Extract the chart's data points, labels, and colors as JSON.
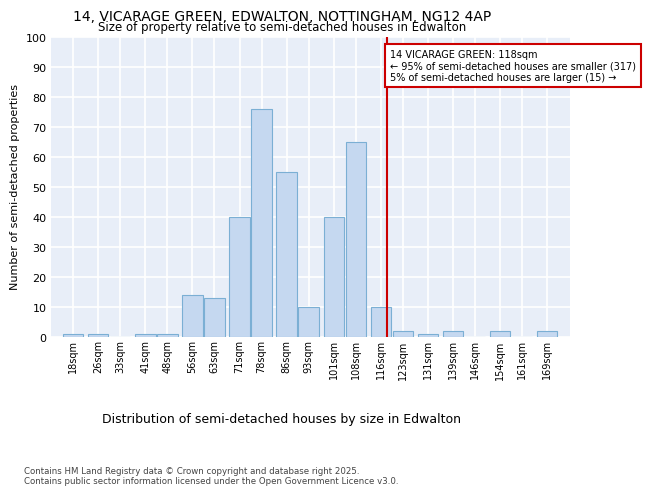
{
  "title1": "14, VICARAGE GREEN, EDWALTON, NOTTINGHAM, NG12 4AP",
  "title2": "Size of property relative to semi-detached houses in Edwalton",
  "xlabel": "Distribution of semi-detached houses by size in Edwalton",
  "ylabel": "Number of semi-detached properties",
  "bins": [
    18,
    26,
    33,
    41,
    48,
    56,
    63,
    71,
    78,
    86,
    93,
    101,
    108,
    116,
    123,
    131,
    139,
    146,
    154,
    161,
    169
  ],
  "values": [
    1,
    1,
    0,
    1,
    1,
    14,
    13,
    40,
    76,
    55,
    10,
    40,
    65,
    10,
    2,
    1,
    2,
    0,
    2,
    0,
    2
  ],
  "bar_color": "#C5D8F0",
  "bar_edge_color": "#7BAFD4",
  "ylim": [
    0,
    100
  ],
  "yticks": [
    0,
    10,
    20,
    30,
    40,
    50,
    60,
    70,
    80,
    90,
    100
  ],
  "red_line_x": 118,
  "annotation_title": "14 VICARAGE GREEN: 118sqm",
  "annotation_line1": "← 95% of semi-detached houses are smaller (317)",
  "annotation_line2": "5% of semi-detached houses are larger (15) →",
  "annotation_color": "#CC0000",
  "background_color": "#E8EEF8",
  "grid_color": "#FFFFFF",
  "footer1": "Contains HM Land Registry data © Crown copyright and database right 2025.",
  "footer2": "Contains public sector information licensed under the Open Government Licence v3.0."
}
